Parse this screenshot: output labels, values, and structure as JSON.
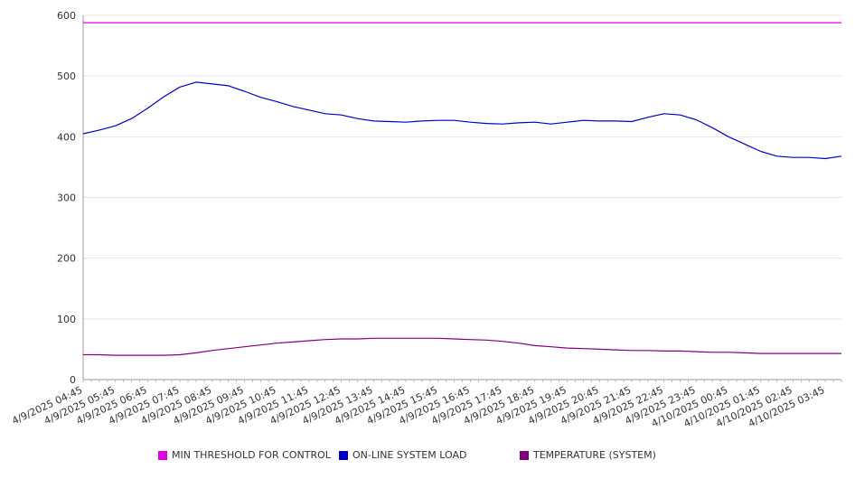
{
  "chart_data": {
    "type": "line",
    "ylim": [
      0,
      600
    ],
    "yticks": [
      0,
      100,
      200,
      300,
      400,
      500,
      600
    ],
    "xtick_labels": [
      "4/9/2025 04:45",
      "4/9/2025 05:45",
      "4/9/2025 06:45",
      "4/9/2025 07:45",
      "4/9/2025 08:45",
      "4/9/2025 09:45",
      "4/9/2025 10:45",
      "4/9/2025 11:45",
      "4/9/2025 12:45",
      "4/9/2025 13:45",
      "4/9/2025 14:45",
      "4/9/2025 15:45",
      "4/9/2025 16:45",
      "4/9/2025 17:45",
      "4/9/2025 18:45",
      "4/9/2025 19:45",
      "4/9/2025 20:45",
      "4/9/2025 21:45",
      "4/9/2025 22:45",
      "4/9/2025 23:45",
      "4/10/2025 00:45",
      "4/10/2025 01:45",
      "4/10/2025 02:45",
      "4/10/2025 03:45"
    ],
    "x_times": [
      "04:45",
      "05:15",
      "05:45",
      "06:15",
      "06:45",
      "07:15",
      "07:45",
      "08:15",
      "08:45",
      "09:15",
      "09:45",
      "10:15",
      "10:45",
      "11:15",
      "11:45",
      "12:15",
      "12:45",
      "13:15",
      "13:45",
      "14:15",
      "14:45",
      "15:15",
      "15:45",
      "16:15",
      "16:45",
      "17:15",
      "17:45",
      "18:15",
      "18:45",
      "19:15",
      "19:45",
      "20:15",
      "20:45",
      "21:15",
      "21:45",
      "22:15",
      "22:45",
      "23:15",
      "23:45",
      "00:15",
      "00:45",
      "01:15",
      "01:45",
      "02:15",
      "02:45",
      "03:15",
      "03:45",
      "04:15"
    ],
    "grid": true,
    "legend_position": "bottom",
    "series": [
      {
        "name": "MIN THRESHOLD FOR CONTROL",
        "color": "#e000e0",
        "values": [
          588,
          588,
          588,
          588,
          588,
          588,
          588,
          588,
          588,
          588,
          588,
          588,
          588,
          588,
          588,
          588,
          588,
          588,
          588,
          588,
          588,
          588,
          588,
          588,
          588,
          588,
          588,
          588,
          588,
          588,
          588,
          588,
          588,
          588,
          588,
          588,
          588,
          588,
          588,
          588,
          588,
          588,
          588,
          588,
          588,
          588,
          588,
          588
        ]
      },
      {
        "name": "ON-LINE SYSTEM LOAD",
        "color": "#0000cc",
        "values": [
          405,
          411,
          418,
          430,
          447,
          466,
          482,
          490,
          487,
          484,
          475,
          465,
          458,
          450,
          444,
          438,
          436,
          430,
          426,
          425,
          424,
          426,
          427,
          427,
          424,
          422,
          421,
          423,
          424,
          421,
          424,
          427,
          426,
          426,
          425,
          432,
          438,
          436,
          428,
          415,
          400,
          388,
          376,
          368,
          366,
          366,
          364,
          368
        ]
      },
      {
        "name": "TEMPERATURE (SYSTEM)",
        "color": "#800080",
        "values": [
          41,
          41,
          40,
          40,
          40,
          40,
          41,
          44,
          48,
          51,
          54,
          57,
          60,
          62,
          64,
          66,
          67,
          67,
          68,
          68,
          68,
          68,
          68,
          67,
          66,
          65,
          63,
          60,
          56,
          54,
          52,
          51,
          50,
          49,
          48,
          48,
          47,
          47,
          46,
          45,
          45,
          44,
          43,
          43,
          43,
          43,
          43,
          43
        ]
      }
    ]
  }
}
